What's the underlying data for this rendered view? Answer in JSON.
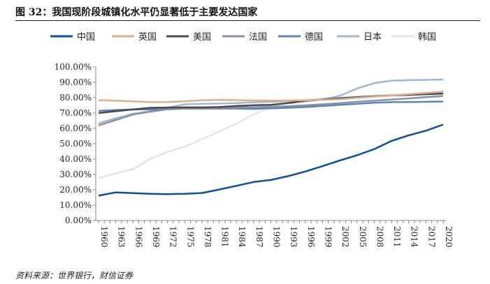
{
  "header": {
    "title": "图 32：我国现阶段城镇化水平仍显著低于主要发达国家"
  },
  "footer": {
    "source": "资料来源：世界银行，财信证券"
  },
  "chart_data": {
    "type": "line",
    "title": "图 32：我国现阶段城镇化水平仍显著低于主要发达国家",
    "xlabel": "",
    "ylabel": "",
    "ylim": [
      0,
      100
    ],
    "yticks": [
      "0.00%",
      "10.00%",
      "20.00%",
      "30.00%",
      "40.00%",
      "50.00%",
      "60.00%",
      "70.00%",
      "80.00%",
      "90.00%",
      "100.00%"
    ],
    "categories": [
      "1960",
      "1963",
      "1966",
      "1969",
      "1972",
      "1975",
      "1978",
      "1981",
      "1984",
      "1987",
      "1990",
      "1993",
      "1996",
      "1999",
      "2002",
      "2005",
      "2008",
      "2011",
      "2014",
      "2017",
      "2020"
    ],
    "legend_position": "top",
    "grid": false,
    "series": [
      {
        "name": "中国",
        "color": "#0b4ea2",
        "values": [
          16.2,
          18.3,
          17.8,
          17.4,
          17.2,
          17.4,
          17.9,
          20.2,
          22.6,
          25.1,
          26.4,
          28.9,
          31.9,
          35.4,
          39.1,
          42.5,
          46.5,
          51.8,
          55.5,
          58.5,
          62.5
        ]
      },
      {
        "name": "英国",
        "color": "#dcae8e",
        "values": [
          78.4,
          78.0,
          77.6,
          77.1,
          77.2,
          77.7,
          78.3,
          78.5,
          78.4,
          78.2,
          78.1,
          78.2,
          78.3,
          78.6,
          79.0,
          79.9,
          80.7,
          81.4,
          82.3,
          83.1,
          84.0
        ]
      },
      {
        "name": "美国",
        "color": "#4a4a4a",
        "values": [
          70.0,
          71.2,
          72.3,
          73.4,
          73.6,
          73.7,
          73.7,
          73.9,
          74.6,
          75.1,
          75.3,
          76.5,
          77.9,
          78.8,
          79.6,
          80.3,
          80.9,
          81.4,
          81.8,
          82.3,
          82.7
        ]
      },
      {
        "name": "法国",
        "color": "#8593a3",
        "values": [
          61.9,
          65.5,
          69.0,
          70.9,
          72.3,
          72.9,
          73.2,
          73.3,
          73.6,
          73.8,
          74.1,
          74.4,
          75.0,
          75.7,
          76.4,
          77.4,
          78.1,
          78.8,
          79.5,
          80.3,
          81.1
        ]
      },
      {
        "name": "德国",
        "color": "#5e83bb",
        "values": [
          71.4,
          72.0,
          72.3,
          72.3,
          72.7,
          72.8,
          72.8,
          72.9,
          72.9,
          72.7,
          73.1,
          73.4,
          73.9,
          74.6,
          75.3,
          76.0,
          76.7,
          77.1,
          77.2,
          77.3,
          77.5
        ]
      },
      {
        "name": "日本",
        "color": "#9db7d7",
        "values": [
          63.3,
          66.6,
          69.5,
          71.2,
          73.5,
          75.7,
          76.0,
          76.2,
          76.5,
          77.0,
          77.3,
          77.6,
          78.0,
          78.7,
          81.2,
          86.0,
          89.5,
          91.1,
          91.4,
          91.6,
          91.8
        ]
      },
      {
        "name": "韩国",
        "color": "#dde6f1",
        "values": [
          27.7,
          30.7,
          33.4,
          40.2,
          44.7,
          48.0,
          53.0,
          58.0,
          63.0,
          69.0,
          73.8,
          77.0,
          78.7,
          79.6,
          80.2,
          80.8,
          81.4,
          81.9,
          81.6,
          81.5,
          81.4
        ]
      }
    ]
  }
}
